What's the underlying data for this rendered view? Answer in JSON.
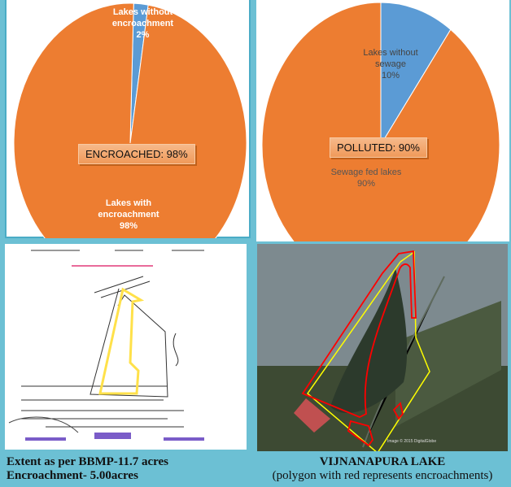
{
  "chart_data": [
    {
      "type": "pie",
      "slices": [
        {
          "label": "Lakes without encroachment",
          "value": 2,
          "color": "#5b9bd5"
        },
        {
          "label": "Lakes with encroachment",
          "value": 98,
          "color": "#ed7d31"
        }
      ],
      "data_labels": {
        "without": [
          "Lakes without",
          "encroachment",
          "2%"
        ],
        "with": [
          "Lakes with",
          "encroachment",
          "98%"
        ]
      },
      "callout": "ENCROACHED: 98%"
    },
    {
      "type": "pie",
      "slices": [
        {
          "label": "Lakes without sewage",
          "value": 10,
          "color": "#5b9bd5"
        },
        {
          "label": "Sewage fed lakes",
          "value": 90,
          "color": "#ed7d31"
        }
      ],
      "data_labels": {
        "without": [
          "Lakes without",
          "sewage",
          "10%"
        ],
        "with": [
          "Sewage fed lakes",
          "90%"
        ]
      },
      "callout": "POLLUTED: 90%"
    }
  ],
  "captions": {
    "left": [
      "Extent as per BBMP-11.7 acres",
      "Encroachment- 5.00acres"
    ],
    "right": [
      "VIJNANAPURA LAKE",
      "(polygon with red represents encroachments)"
    ]
  },
  "satellite": {
    "credit": "Image © 2015 DigitalGlobe"
  }
}
